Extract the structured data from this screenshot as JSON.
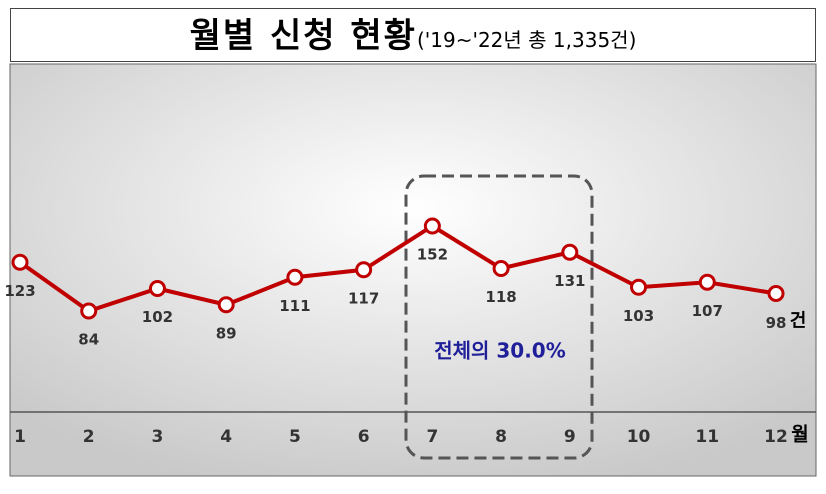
{
  "chart_data": {
    "type": "line",
    "title": "월별 신청 현황",
    "subtitle": "('19~'22년 총 1,335건)",
    "categories": [
      "1",
      "2",
      "3",
      "4",
      "5",
      "6",
      "7",
      "8",
      "9",
      "10",
      "11",
      "12"
    ],
    "series": [
      {
        "name": "신청 건수",
        "color": "#c00000",
        "values": [
          123,
          84,
          102,
          89,
          111,
          117,
          152,
          118,
          131,
          103,
          107,
          98
        ]
      }
    ],
    "value_unit": "건",
    "x_unit": "월",
    "annotation": "전체의 30.0%"
  }
}
